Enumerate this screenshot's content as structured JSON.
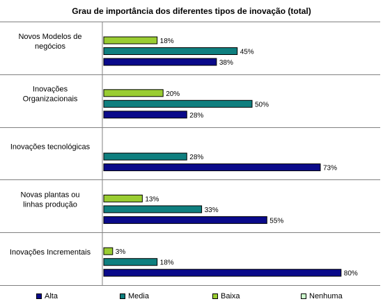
{
  "chart_data": {
    "type": "bar",
    "orientation": "horizontal",
    "title": "Grau de importância dos diferentes tipos de inovação (total)",
    "categories": [
      "Novos Modelos de negócios",
      "Inovações Organizacionais",
      "Inovações tecnológicas",
      "Novas plantas ou linhas produção",
      "Inovações Incrementais"
    ],
    "category_label_lines": [
      [
        "Novos Modelos de",
        "negócios"
      ],
      [
        "Inovações",
        "Organizacionais"
      ],
      [
        "Inovações tecnológicas"
      ],
      [
        "Novas plantas ou",
        "linhas produção"
      ],
      [
        "Inovações Incrementais"
      ]
    ],
    "series": [
      {
        "name": "Baixa",
        "color": "#9acd32",
        "values": [
          18,
          20,
          null,
          13,
          3
        ]
      },
      {
        "name": "Media",
        "color": "#0f7f7f",
        "values": [
          45,
          50,
          28,
          33,
          18
        ]
      },
      {
        "name": "Alta",
        "color": "#0a0a8a",
        "values": [
          38,
          28,
          73,
          55,
          80
        ]
      }
    ],
    "legend": {
      "position": "bottom",
      "items": [
        {
          "name": "Alta",
          "color": "#0a0a8a"
        },
        {
          "name": "Media",
          "color": "#0f7f7f"
        },
        {
          "name": "Baixa",
          "color": "#9acd32"
        },
        {
          "name": "Nenhuma",
          "color": "#ccffcc"
        }
      ]
    },
    "xlim": [
      0,
      100
    ],
    "value_suffix": "%",
    "grid": false
  }
}
